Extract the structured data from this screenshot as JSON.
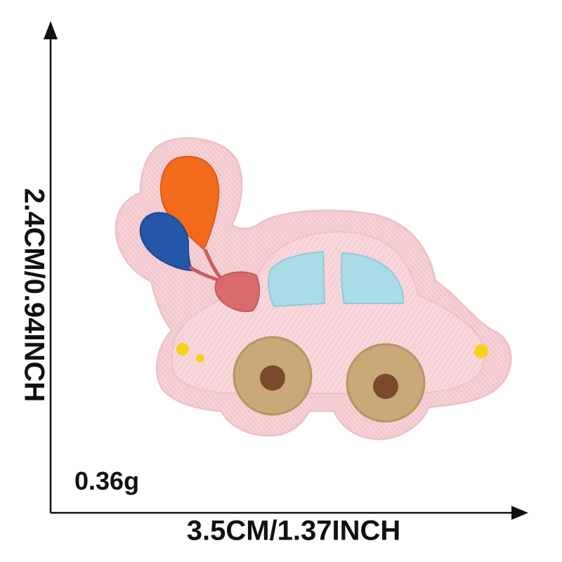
{
  "labels": {
    "height": "2.4CM/0.94INCH",
    "width": "3.5CM/1.37INCH",
    "weight": "0.36g"
  },
  "colors": {
    "patch_border": "#f3c9cf",
    "patch_fill": "#f8d7da",
    "balloon_orange": "#f26b1d",
    "balloon_blue": "#2457a8",
    "bow": "#d96a6e",
    "window": "#a9dce6",
    "wheel_outer": "#c8a977",
    "wheel_hub": "#7a4a2a",
    "light": "#f5d21a",
    "axis": "#111111"
  },
  "icons": {
    "axis_arrow": "arrow-head-icon",
    "patch": "car-with-balloons-patch"
  }
}
